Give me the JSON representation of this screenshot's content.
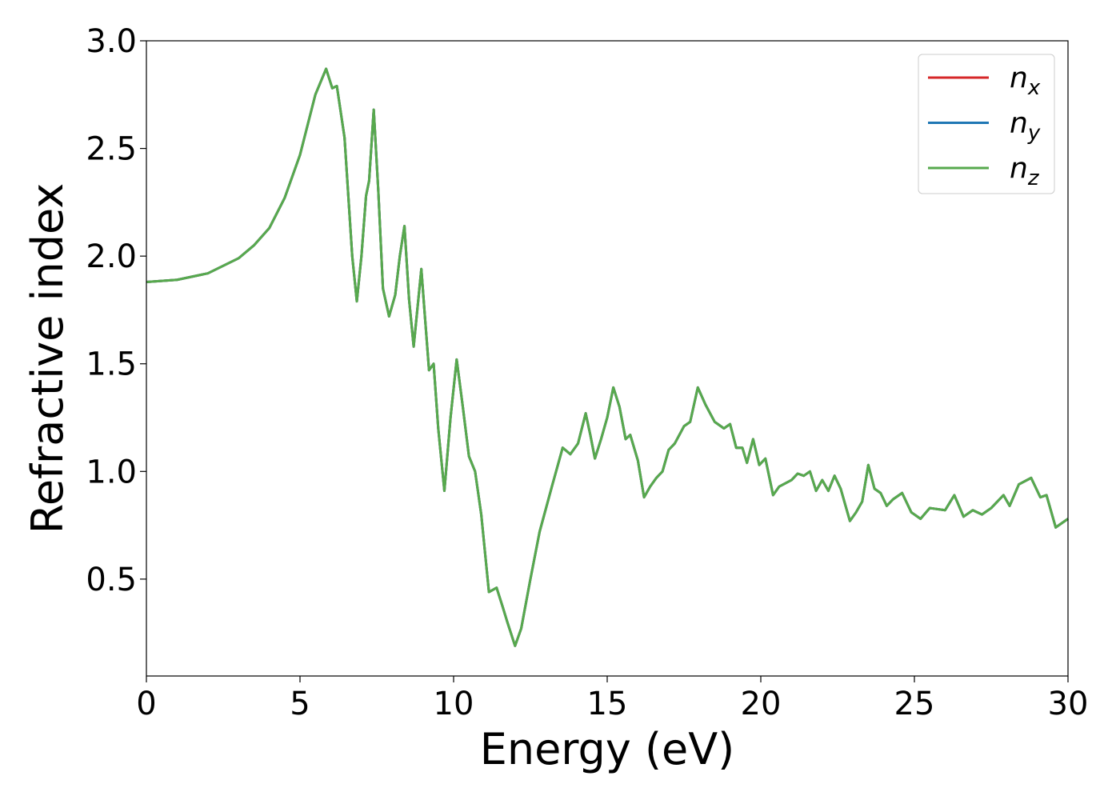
{
  "chart_data": {
    "type": "line",
    "xlabel": "Energy (eV)",
    "ylabel": "Refractive index",
    "x": [
      0,
      1,
      2,
      3,
      3.5,
      4,
      4.5,
      5,
      5.5,
      5.85,
      6.05,
      6.2,
      6.45,
      6.7,
      6.85,
      7.0,
      7.15,
      7.25,
      7.4,
      7.55,
      7.7,
      7.9,
      8.1,
      8.25,
      8.4,
      8.55,
      8.7,
      8.95,
      9.05,
      9.2,
      9.35,
      9.5,
      9.7,
      9.9,
      10.1,
      10.3,
      10.5,
      10.7,
      10.9,
      11.15,
      11.4,
      11.6,
      11.75,
      12.0,
      12.2,
      12.5,
      12.8,
      13.2,
      13.55,
      13.8,
      14.05,
      14.3,
      14.45,
      14.6,
      14.8,
      15.0,
      15.2,
      15.4,
      15.6,
      15.75,
      16.0,
      16.2,
      16.4,
      16.6,
      16.8,
      17.0,
      17.2,
      17.5,
      17.7,
      17.95,
      18.2,
      18.5,
      18.8,
      19.0,
      19.2,
      19.4,
      19.55,
      19.75,
      19.95,
      20.15,
      20.4,
      20.6,
      21.0,
      21.2,
      21.4,
      21.6,
      21.8,
      22.0,
      22.2,
      22.4,
      22.6,
      22.9,
      23.1,
      23.3,
      23.5,
      23.7,
      23.9,
      24.1,
      24.3,
      24.6,
      24.9,
      25.2,
      25.5,
      26.0,
      26.3,
      26.6,
      26.9,
      27.2,
      27.5,
      27.9,
      28.1,
      28.4,
      28.8,
      29.1,
      29.3,
      29.6,
      30.0
    ],
    "series": [
      {
        "name": "nx",
        "color": "#d62728",
        "values": [
          1.88,
          1.89,
          1.92,
          1.99,
          2.05,
          2.13,
          2.27,
          2.47,
          2.75,
          2.87,
          2.78,
          2.79,
          2.55,
          2.0,
          1.79,
          2.0,
          2.28,
          2.35,
          2.68,
          2.3,
          1.85,
          1.72,
          1.82,
          2.0,
          2.14,
          1.8,
          1.58,
          1.94,
          1.75,
          1.47,
          1.5,
          1.2,
          0.91,
          1.25,
          1.52,
          1.3,
          1.07,
          1.0,
          0.8,
          0.44,
          0.46,
          0.37,
          0.3,
          0.19,
          0.27,
          0.5,
          0.72,
          0.93,
          1.11,
          1.08,
          1.13,
          1.27,
          1.17,
          1.06,
          1.15,
          1.25,
          1.39,
          1.3,
          1.15,
          1.17,
          1.05,
          0.88,
          0.93,
          0.97,
          1.0,
          1.1,
          1.13,
          1.21,
          1.23,
          1.39,
          1.31,
          1.23,
          1.2,
          1.22,
          1.11,
          1.11,
          1.04,
          1.15,
          1.03,
          1.06,
          0.89,
          0.93,
          0.96,
          0.99,
          0.98,
          1.0,
          0.91,
          0.96,
          0.91,
          0.98,
          0.92,
          0.77,
          0.81,
          0.86,
          1.03,
          0.92,
          0.9,
          0.84,
          0.87,
          0.9,
          0.81,
          0.78,
          0.83,
          0.82,
          0.89,
          0.79,
          0.82,
          0.8,
          0.83,
          0.89,
          0.84,
          0.94,
          0.97,
          0.88,
          0.89,
          0.74,
          0.78
        ]
      },
      {
        "name": "ny",
        "color": "#1f77b4",
        "values": [
          1.88,
          1.89,
          1.92,
          1.99,
          2.05,
          2.13,
          2.27,
          2.47,
          2.75,
          2.87,
          2.78,
          2.79,
          2.55,
          2.0,
          1.79,
          2.0,
          2.28,
          2.35,
          2.68,
          2.3,
          1.85,
          1.72,
          1.82,
          2.0,
          2.14,
          1.8,
          1.58,
          1.94,
          1.75,
          1.47,
          1.5,
          1.2,
          0.91,
          1.25,
          1.52,
          1.3,
          1.07,
          1.0,
          0.8,
          0.44,
          0.46,
          0.37,
          0.3,
          0.19,
          0.27,
          0.5,
          0.72,
          0.93,
          1.11,
          1.08,
          1.13,
          1.27,
          1.17,
          1.06,
          1.15,
          1.25,
          1.39,
          1.3,
          1.15,
          1.17,
          1.05,
          0.88,
          0.93,
          0.97,
          1.0,
          1.1,
          1.13,
          1.21,
          1.23,
          1.39,
          1.31,
          1.23,
          1.2,
          1.22,
          1.11,
          1.11,
          1.04,
          1.15,
          1.03,
          1.06,
          0.89,
          0.93,
          0.96,
          0.99,
          0.98,
          1.0,
          0.91,
          0.96,
          0.91,
          0.98,
          0.92,
          0.77,
          0.81,
          0.86,
          1.03,
          0.92,
          0.9,
          0.84,
          0.87,
          0.9,
          0.81,
          0.78,
          0.83,
          0.82,
          0.89,
          0.79,
          0.82,
          0.8,
          0.83,
          0.89,
          0.84,
          0.94,
          0.97,
          0.88,
          0.89,
          0.74,
          0.78
        ]
      },
      {
        "name": "nz",
        "color": "#57a94d",
        "values": [
          1.88,
          1.89,
          1.92,
          1.99,
          2.05,
          2.13,
          2.27,
          2.47,
          2.75,
          2.87,
          2.78,
          2.79,
          2.55,
          2.0,
          1.79,
          2.0,
          2.28,
          2.35,
          2.68,
          2.3,
          1.85,
          1.72,
          1.82,
          2.0,
          2.14,
          1.8,
          1.58,
          1.94,
          1.75,
          1.47,
          1.5,
          1.2,
          0.91,
          1.25,
          1.52,
          1.3,
          1.07,
          1.0,
          0.8,
          0.44,
          0.46,
          0.37,
          0.3,
          0.19,
          0.27,
          0.5,
          0.72,
          0.93,
          1.11,
          1.08,
          1.13,
          1.27,
          1.17,
          1.06,
          1.15,
          1.25,
          1.39,
          1.3,
          1.15,
          1.17,
          1.05,
          0.88,
          0.93,
          0.97,
          1.0,
          1.1,
          1.13,
          1.21,
          1.23,
          1.39,
          1.31,
          1.23,
          1.2,
          1.22,
          1.11,
          1.11,
          1.04,
          1.15,
          1.03,
          1.06,
          0.89,
          0.93,
          0.96,
          0.99,
          0.98,
          1.0,
          0.91,
          0.96,
          0.91,
          0.98,
          0.92,
          0.77,
          0.81,
          0.86,
          1.03,
          0.92,
          0.9,
          0.84,
          0.87,
          0.9,
          0.81,
          0.78,
          0.83,
          0.82,
          0.89,
          0.79,
          0.82,
          0.8,
          0.83,
          0.89,
          0.84,
          0.94,
          0.97,
          0.88,
          0.89,
          0.74,
          0.78
        ]
      }
    ],
    "xlim": [
      0,
      30
    ],
    "xticks": [
      0,
      5,
      10,
      15,
      20,
      25,
      30
    ],
    "ylim": [
      0.05,
      3.0
    ],
    "yticks": [
      0.5,
      {
        "value": 1,
        "label": "1.0"
      },
      1.5,
      {
        "value": 2,
        "label": "2.0"
      },
      2.5,
      {
        "value": 3,
        "label": "3.0"
      }
    ],
    "grid": false,
    "legend": "upper right"
  }
}
